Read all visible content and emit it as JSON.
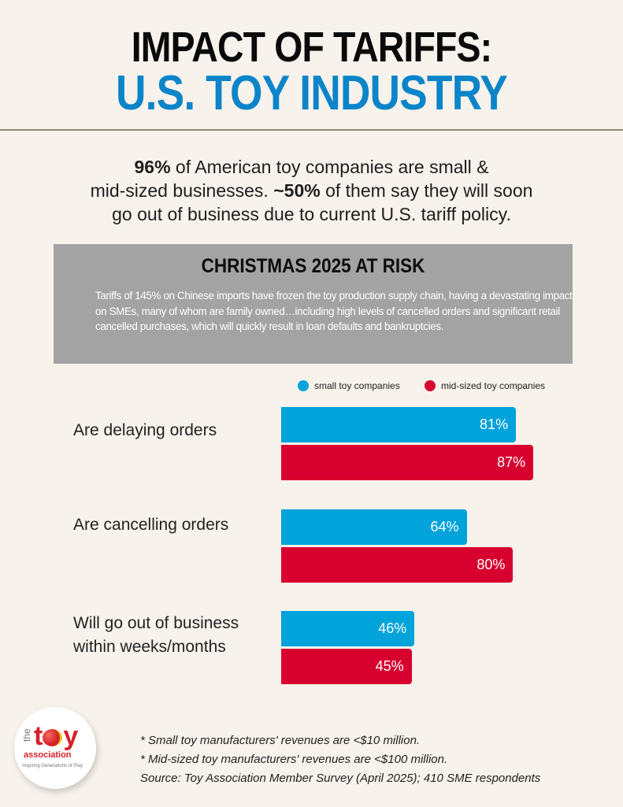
{
  "header": {
    "title_line1": "IMPACT OF TARIFFS:",
    "title_line2": "U.S. TOY INDUSTRY"
  },
  "intro": {
    "line1_bold": "96%",
    "line1_rest": " of American toy companies are small &",
    "line2_pre": "mid-sized businesses. ",
    "line2_bold": "~50%",
    "line2_rest": " of them say they will soon",
    "line3": "go out of business due to current U.S. tariff policy."
  },
  "risk_box": {
    "title": "CHRISTMAS 2025 AT RISK",
    "body": "Tariffs of 145% on Chinese imports have frozen the toy production supply chain, having a devastating impact on SMEs, many of whom are family owned…including high levels of cancelled orders and significant retail cancelled purchases, which will quickly result in loan defaults and bankruptcies."
  },
  "colors": {
    "small": "#00a3da",
    "mid": "#d7002f",
    "title_blue": "#0b84c9"
  },
  "chart_data": {
    "type": "bar",
    "orientation": "horizontal",
    "title": "",
    "xlabel": "",
    "ylabel": "",
    "xlim": [
      0,
      100
    ],
    "grid": false,
    "legend_position": "top-right",
    "categories": [
      "Are delaying orders",
      "Are cancelling orders",
      "Will go out of business within weeks/months"
    ],
    "category_lines": [
      [
        "Are delaying orders"
      ],
      [
        "Are cancelling orders"
      ],
      [
        "Will go out of business",
        "within weeks/months"
      ]
    ],
    "series": [
      {
        "name": "small toy companies",
        "color": "#00a3da",
        "values": [
          81,
          64,
          46
        ],
        "labels": [
          "81%",
          "64%",
          "46%"
        ]
      },
      {
        "name": "mid-sized toy companies",
        "color": "#d7002f",
        "values": [
          87,
          80,
          45
        ],
        "labels": [
          "87%",
          "80%",
          "45%"
        ]
      }
    ]
  },
  "logo": {
    "the": "the",
    "toy_t": "t",
    "toy_y": "y",
    "association": "association",
    "tagline": "Inspiring Generations of Play"
  },
  "footnotes": [
    "* Small toy manufacturers' revenues are <$10 million.",
    "* Mid-sized toy manufacturers'  revenues are <$100 million.",
    "Source: Toy Association Member Survey (April 2025); 410 SME respondents"
  ]
}
